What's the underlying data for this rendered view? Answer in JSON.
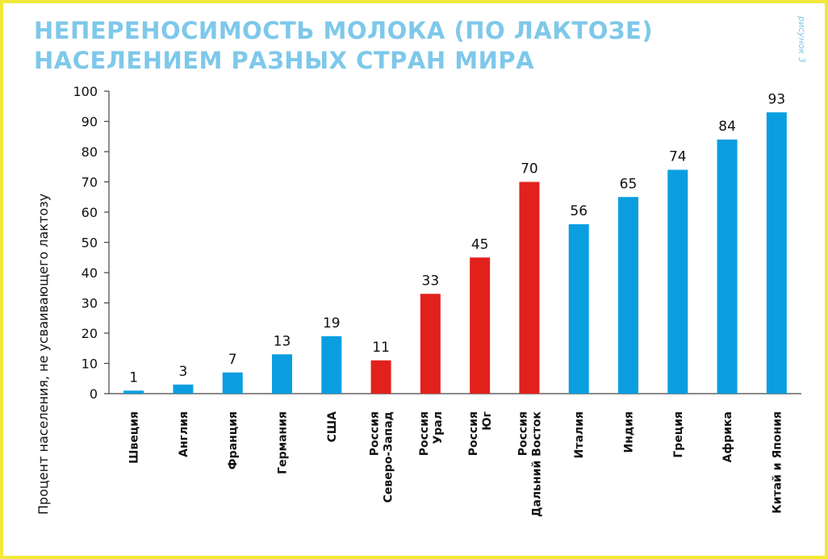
{
  "figure_mark": "рисунок 3",
  "chart_data": {
    "type": "bar",
    "title": [
      "НЕПЕРЕНОСИМОСТЬ МОЛОКА (ПО ЛАКТОЗЕ)",
      "НАСЕЛЕНИЕМ РАЗНЫХ СТРАН МИРА"
    ],
    "xlabel": "",
    "ylabel": "Процент населения, не усваивающего лактозу",
    "ylim": [
      0,
      100
    ],
    "yticks": [
      0,
      10,
      20,
      30,
      40,
      50,
      60,
      70,
      80,
      90,
      100
    ],
    "grid": false,
    "colors": {
      "default": "#0a9ee0",
      "russia": "#e3211c"
    },
    "bars": [
      {
        "label": [
          "Швеция"
        ],
        "value": 1,
        "color": "#0a9ee0"
      },
      {
        "label": [
          "Англия"
        ],
        "value": 3,
        "color": "#0a9ee0"
      },
      {
        "label": [
          "Франция"
        ],
        "value": 7,
        "color": "#0a9ee0"
      },
      {
        "label": [
          "Германия"
        ],
        "value": 13,
        "color": "#0a9ee0"
      },
      {
        "label": [
          "США"
        ],
        "value": 19,
        "color": "#0a9ee0"
      },
      {
        "label": [
          "Россия",
          "Северо-Запад"
        ],
        "value": 11,
        "color": "#e3211c"
      },
      {
        "label": [
          "Россия",
          "Урал"
        ],
        "value": 33,
        "color": "#e3211c"
      },
      {
        "label": [
          "Россия",
          "Юг"
        ],
        "value": 45,
        "color": "#e3211c"
      },
      {
        "label": [
          "Россия",
          "Дальний Восток"
        ],
        "value": 70,
        "color": "#e3211c"
      },
      {
        "label": [
          "Италия"
        ],
        "value": 56,
        "color": "#0a9ee0"
      },
      {
        "label": [
          "Индия"
        ],
        "value": 65,
        "color": "#0a9ee0"
      },
      {
        "label": [
          "Греция"
        ],
        "value": 74,
        "color": "#0a9ee0"
      },
      {
        "label": [
          "Африка"
        ],
        "value": 84,
        "color": "#0a9ee0"
      },
      {
        "label": [
          "Китай и Япония"
        ],
        "value": 93,
        "color": "#0a9ee0"
      }
    ]
  }
}
